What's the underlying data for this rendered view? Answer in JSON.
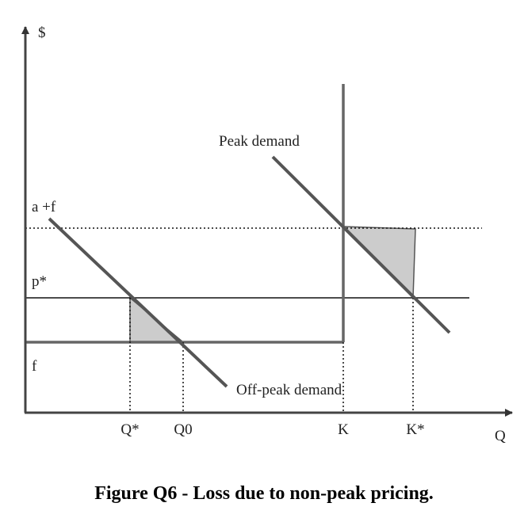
{
  "axes": {
    "y_label": "$",
    "x_label": "Q"
  },
  "levels": {
    "a_plus_f": "a +f",
    "p_star": "p*",
    "f": "f"
  },
  "quantities": {
    "q_star": "Q*",
    "q0": "Q0",
    "k": "K",
    "k_star": "K*"
  },
  "curves": {
    "peak": "Peak demand",
    "offpeak": "Off-peak demand"
  },
  "caption": "Figure Q6 - Loss due to non-peak pricing.",
  "colors": {
    "line": "#555555",
    "shade": "#cccccc",
    "thin": "#111111"
  }
}
